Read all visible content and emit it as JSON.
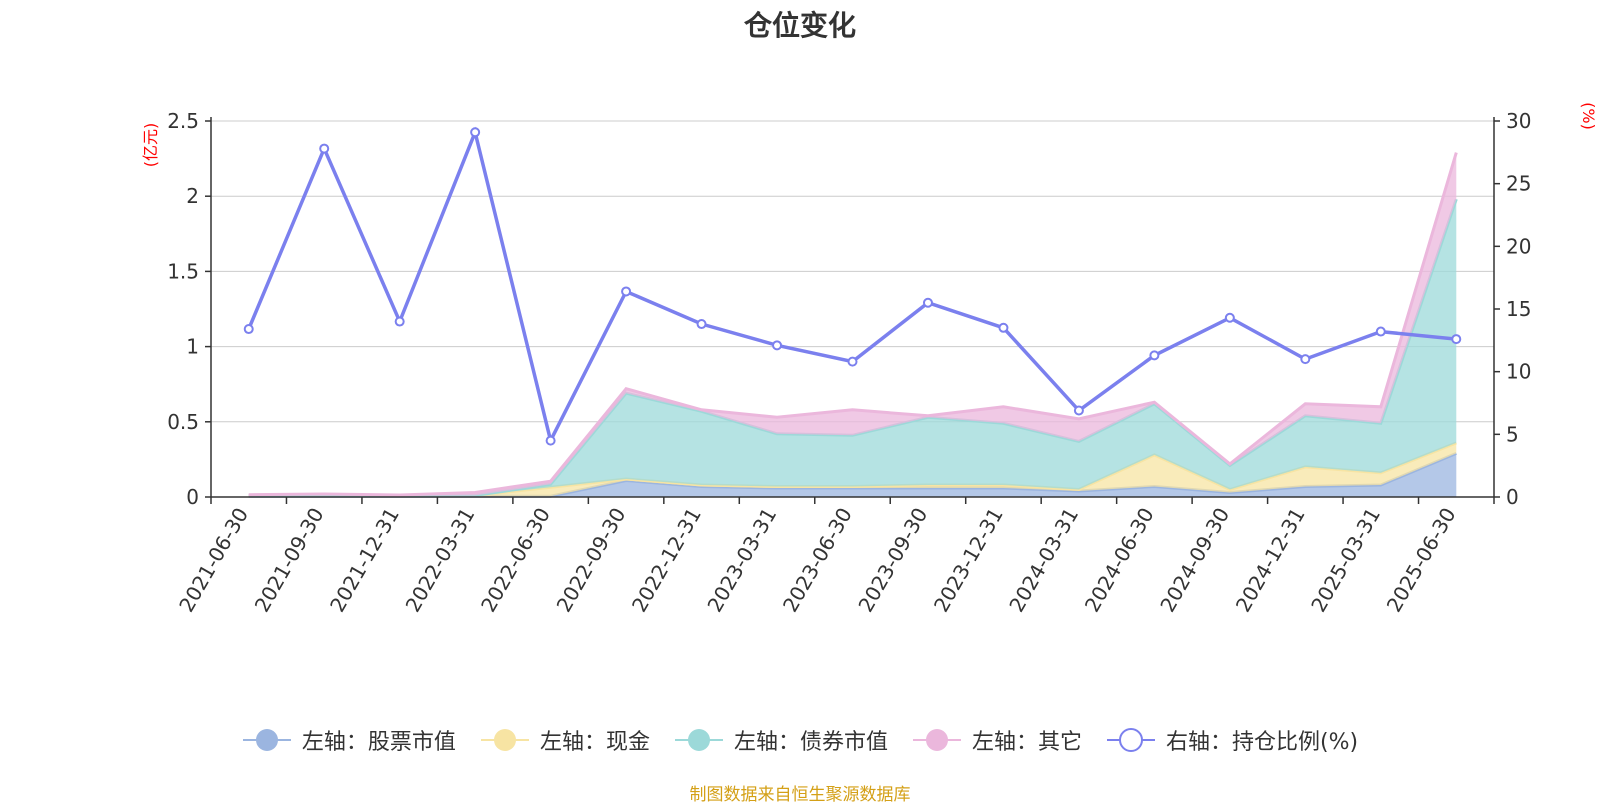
{
  "chart_data": {
    "type": "area",
    "title": "仓位变化",
    "categories": [
      "2021-06-30",
      "2021-09-30",
      "2021-12-31",
      "2022-03-31",
      "2022-06-30",
      "2022-09-30",
      "2022-12-31",
      "2023-03-31",
      "2023-06-30",
      "2023-09-30",
      "2023-12-31",
      "2024-03-31",
      "2024-06-30",
      "2024-09-30",
      "2024-12-31",
      "2025-03-31",
      "2025-06-30"
    ],
    "left_axis": {
      "unit": "(亿元)",
      "ylim": [
        0,
        2.5
      ],
      "ticks": [
        "0",
        "0.5",
        "1",
        "1.5",
        "2",
        "2.5"
      ]
    },
    "right_axis": {
      "unit": "(%)",
      "ylim": [
        0,
        30
      ],
      "ticks": [
        "0",
        "5",
        "10",
        "15",
        "20",
        "25",
        "30"
      ]
    },
    "grid": true,
    "legend_position": "bottom-center",
    "series": [
      {
        "name": "左轴：股票市值",
        "axis": "left",
        "kind": "stacked-area",
        "color": "#9bb5e0",
        "values": [
          0.005,
          0.005,
          0.005,
          0.005,
          0.005,
          0.11,
          0.07,
          0.06,
          0.06,
          0.06,
          0.06,
          0.04,
          0.07,
          0.03,
          0.07,
          0.08,
          0.29
        ]
      },
      {
        "name": "左轴：现金",
        "axis": "left",
        "kind": "stacked-area",
        "color": "#f7e4a3",
        "values": [
          0.005,
          0.005,
          0.003,
          0.005,
          0.06,
          0.01,
          0.01,
          0.01,
          0.01,
          0.02,
          0.02,
          0.01,
          0.21,
          0.02,
          0.13,
          0.08,
          0.07
        ]
      },
      {
        "name": "左轴：债券市值",
        "axis": "left",
        "kind": "stacked-area",
        "color": "#9cd9d9",
        "values": [
          0,
          0,
          0,
          0,
          0.02,
          0.57,
          0.49,
          0.35,
          0.34,
          0.45,
          0.41,
          0.32,
          0.34,
          0.16,
          0.34,
          0.33,
          1.62
        ]
      },
      {
        "name": "左轴：其它",
        "axis": "left",
        "kind": "stacked-area",
        "color": "#ebb7dc",
        "values": [
          0.005,
          0.01,
          0.005,
          0.02,
          0.02,
          0.03,
          0.01,
          0.11,
          0.17,
          0.01,
          0.11,
          0.15,
          0.01,
          0.01,
          0.08,
          0.11,
          0.31
        ]
      },
      {
        "name": "右轴：持仓比例(%)",
        "axis": "right",
        "kind": "line",
        "color": "#7b80ee",
        "values": [
          13.4,
          27.8,
          14.0,
          29.1,
          4.5,
          16.4,
          13.8,
          12.1,
          10.8,
          15.5,
          13.5,
          6.9,
          11.3,
          14.3,
          11.0,
          13.2,
          12.6
        ]
      }
    ]
  },
  "source_note": "制图数据来自恒生聚源数据库"
}
